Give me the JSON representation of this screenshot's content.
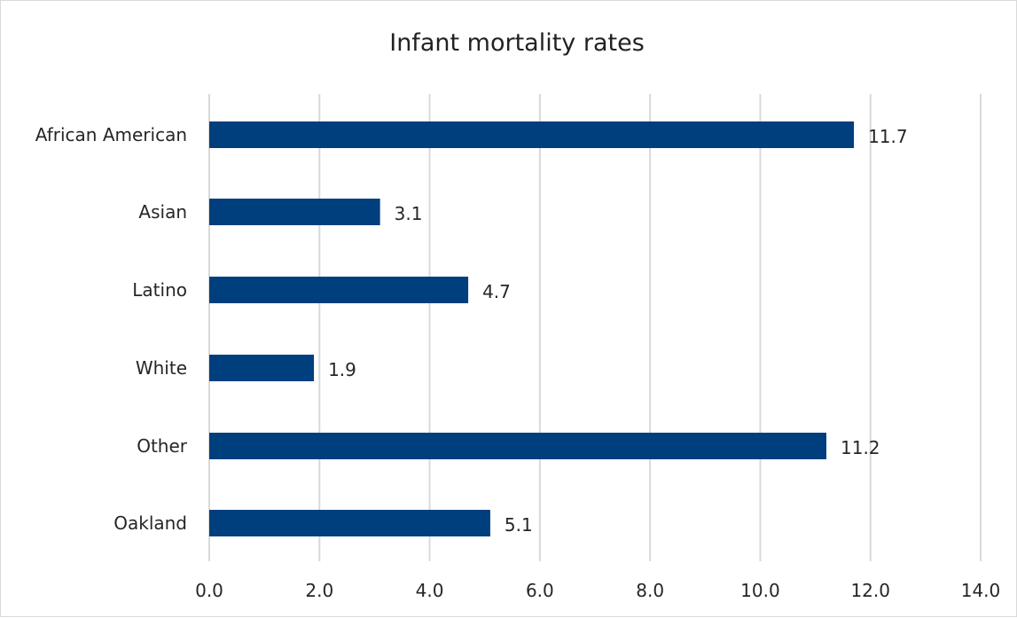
{
  "chart_data": {
    "type": "bar",
    "orientation": "horizontal",
    "title": "Infant mortality rates",
    "xlabel": "",
    "ylabel": "",
    "categories": [
      "African American",
      "Asian",
      "Latino",
      "White",
      "Other",
      "Oakland"
    ],
    "values": [
      11.7,
      3.1,
      4.7,
      1.9,
      11.2,
      5.1
    ],
    "value_labels": [
      "11.7",
      "3.1",
      "4.7",
      "1.9",
      "11.2",
      "5.1"
    ],
    "xlim": [
      0,
      14
    ],
    "x_ticks": [
      "0.0",
      "2.0",
      "4.0",
      "6.0",
      "8.0",
      "10.0",
      "12.0",
      "14.0"
    ],
    "grid": "vertical",
    "legend": "none",
    "bar_color": "#003f7d",
    "grid_color": "#d9d9d9"
  }
}
